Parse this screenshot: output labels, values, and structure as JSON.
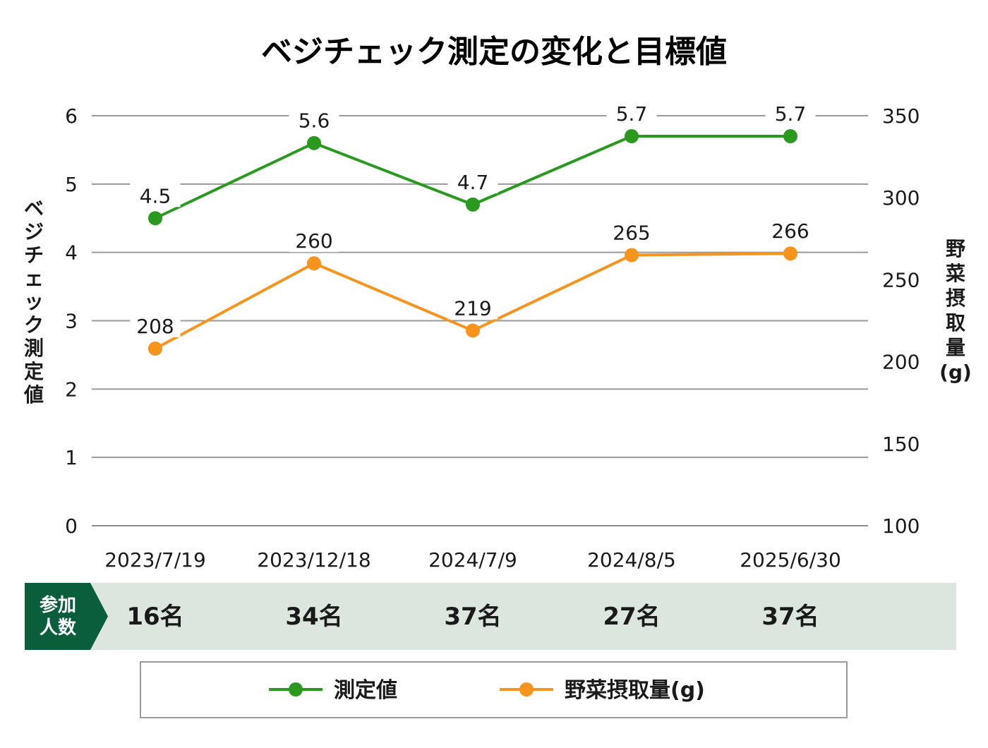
{
  "chart_data": {
    "type": "line",
    "title": "ベジチェック測定の変化と目標値",
    "categories": [
      "2023/7/19",
      "2023/12/18",
      "2024/7/9",
      "2024/8/5",
      "2025/6/30"
    ],
    "y_left": {
      "label": "ベジチェック測定値",
      "range": [
        0,
        6
      ],
      "ticks": [
        "0",
        "1",
        "2",
        "3",
        "4",
        "5",
        "6"
      ]
    },
    "y_right": {
      "label": "野菜摂取量(g)",
      "range": [
        100,
        350
      ],
      "ticks": [
        "100",
        "150",
        "200",
        "250",
        "300",
        "350"
      ]
    },
    "series": [
      {
        "name": "測定値",
        "axis": "left",
        "color": "#2a9a1e",
        "values": [
          4.5,
          5.6,
          4.7,
          5.7,
          5.7
        ],
        "labels": [
          "4.5",
          "5.6",
          "4.7",
          "5.7",
          "5.7"
        ]
      },
      {
        "name": "野菜摂取量(g)",
        "axis": "right",
        "color": "#f7941d",
        "values": [
          208,
          260,
          219,
          265,
          266
        ],
        "labels": [
          "208",
          "260",
          "219",
          "265",
          "266"
        ]
      }
    ],
    "grid": true,
    "legend": "bottom"
  },
  "participants": {
    "label": "参加人数",
    "label_lines": [
      "参加",
      "人数"
    ],
    "values": [
      "16名",
      "34名",
      "37名",
      "27名",
      "37名"
    ],
    "badge_color": "#0b5e3c",
    "band_color": "#dce6df"
  }
}
